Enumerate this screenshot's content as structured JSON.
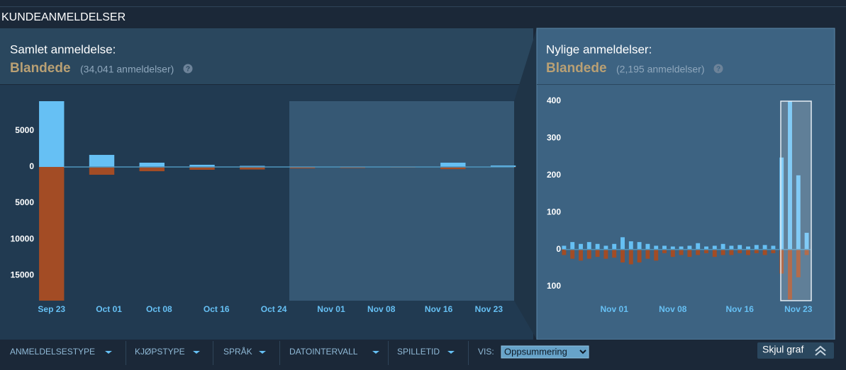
{
  "section_title": "KUNDEANMELDELSER",
  "help_icon": "?",
  "panels": [
    {
      "heading": "Samlet anmeldelse:",
      "rating": "Blandede",
      "count": "(34,041 anmeldelser)"
    },
    {
      "heading": "Nylige anmeldelser:",
      "rating": "Blandede",
      "count": "(2,195 anmeldelser)"
    }
  ],
  "chart_data": [
    {
      "type": "bar",
      "x": [
        0,
        7,
        14,
        21,
        28,
        35,
        42,
        49,
        56,
        63
      ],
      "xlim": [
        -7,
        67
      ],
      "xticks": [
        {
          "value": 0,
          "label": "Sep 23"
        },
        {
          "value": 8,
          "label": "Oct 01"
        },
        {
          "value": 15,
          "label": "Oct 08"
        },
        {
          "value": 23,
          "label": "Oct 16"
        },
        {
          "value": 31,
          "label": "Oct 24"
        },
        {
          "value": 39,
          "label": "Nov 01"
        },
        {
          "value": 46,
          "label": "Nov 08"
        },
        {
          "value": 54,
          "label": "Nov 16"
        },
        {
          "value": 61,
          "label": "Nov 23"
        }
      ],
      "ylim": [
        -18600,
        9200
      ],
      "yticks": [
        5000,
        0,
        {
          "value": -5000,
          "label": "5000"
        },
        {
          "value": -10000,
          "label": "10000"
        },
        {
          "value": -15000,
          "label": "15000"
        }
      ],
      "series": [
        {
          "color": "#66c0f4",
          "values": [
            9100,
            1670,
            590,
            300,
            150,
            50,
            50,
            30,
            590,
            200
          ]
        },
        {
          "color": "#a34c25",
          "values": [
            -18500,
            -1080,
            -590,
            -390,
            -350,
            -200,
            -150,
            -100,
            -300,
            -50
          ]
        }
      ]
    },
    {
      "type": "bar",
      "x": [
        33,
        34,
        35,
        36,
        37,
        38,
        39,
        40,
        41,
        42,
        43,
        44,
        45,
        46,
        47,
        48,
        49,
        50,
        51,
        52,
        53,
        54,
        55,
        56,
        57,
        58,
        59,
        60,
        61,
        62
      ],
      "xlim": [
        30,
        65
      ],
      "xticks": [
        {
          "value": 39,
          "label": "Nov 01"
        },
        {
          "value": 46,
          "label": "Nov 08"
        },
        {
          "value": 54,
          "label": "Nov 16"
        },
        {
          "value": 61,
          "label": "Nov 23"
        }
      ],
      "ylim": [
        -140,
        400
      ],
      "yticks": [
        400,
        300,
        200,
        100,
        0,
        {
          "value": -100,
          "label": "100"
        }
      ],
      "series": [
        {
          "color": "#66c0f4",
          "values": [
            10,
            20,
            15,
            20,
            15,
            10,
            15,
            33,
            22,
            20,
            15,
            10,
            10,
            8,
            8,
            10,
            17,
            8,
            10,
            15,
            10,
            12,
            8,
            12,
            12,
            10,
            248,
            400,
            200,
            45
          ]
        },
        {
          "color": "#a34c25",
          "values": [
            -15,
            -25,
            -30,
            -25,
            -20,
            -25,
            -22,
            -35,
            -40,
            -35,
            -25,
            -30,
            -10,
            -20,
            -15,
            -20,
            -15,
            -10,
            -20,
            -15,
            -15,
            -10,
            -15,
            -10,
            -15,
            -10,
            -65,
            -135,
            -75,
            -15
          ]
        }
      ]
    }
  ],
  "filters": [
    "ANMELDELSESTYPE",
    "KJØPSTYPE",
    "SPRÅK",
    "DATOINTERVALL",
    "SPILLETID"
  ],
  "view_label": "VIS:",
  "view_value": "Oppsummering",
  "hide_graph": "Skjul graf"
}
